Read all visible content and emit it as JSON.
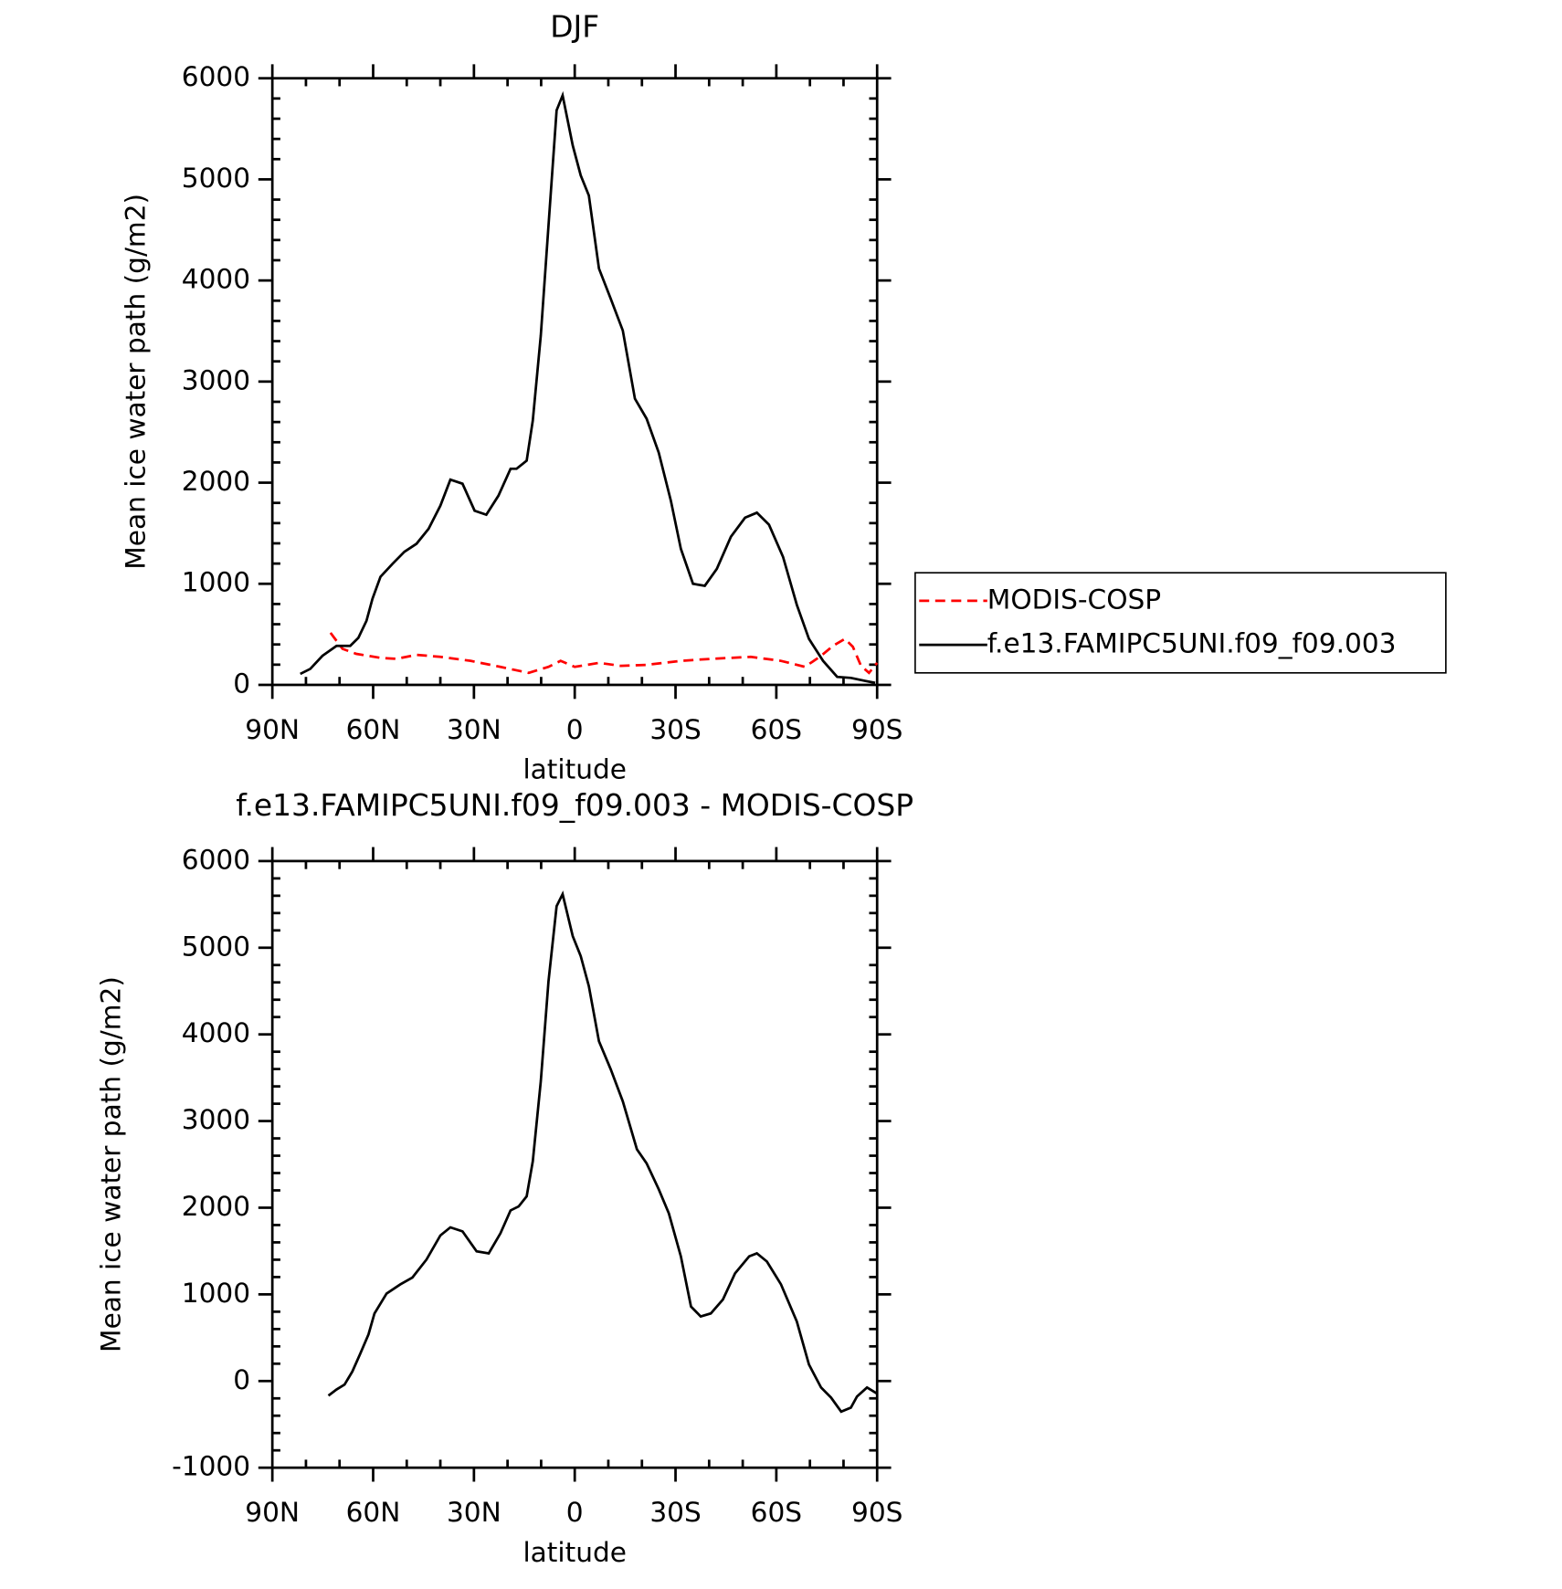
{
  "chart_data": [
    {
      "type": "line",
      "title": "DJF",
      "xlabel": "latitude",
      "ylabel": "Mean ice water path (g/m2)",
      "xlim": [
        90,
        -90
      ],
      "xticks": [
        {
          "value": 90,
          "label": "90N"
        },
        {
          "value": 60,
          "label": "60N"
        },
        {
          "value": 30,
          "label": "30N"
        },
        0,
        {
          "value": -30,
          "label": "30S"
        },
        {
          "value": -60,
          "label": "60S"
        },
        {
          "value": -90,
          "label": "90S"
        }
      ],
      "ylim": [
        0,
        6000
      ],
      "yticks": [
        0,
        1000,
        2000,
        3000,
        4000,
        5000,
        6000
      ],
      "legend": "right",
      "series": [
        {
          "name": "MODIS-COSP",
          "color": "#ff0000",
          "linestyle": "dashed",
          "x": [
            72.7,
            69.1,
            65.0,
            57.8,
            53.1,
            47.1,
            40.0,
            31.0,
            22.1,
            13.7,
            7.8,
            4.2,
            0.0,
            -7.2,
            -13.7,
            -21.4,
            -31.6,
            -40.5,
            -52.4,
            -61.4,
            -68.5,
            -73.3,
            -76.9,
            -80.4,
            -82.8,
            -85.2,
            -87.6,
            -90
          ],
          "values": [
            515,
            356,
            307,
            267,
            257,
            297,
            277,
            238,
            178,
            119,
            178,
            238,
            178,
            218,
            188,
            198,
            238,
            257,
            277,
            238,
            178,
            287,
            386,
            455,
            376,
            188,
            119,
            218
          ]
        },
        {
          "name": "f.e13.FAMIPC5UNI.f09_f09.003",
          "color": "#000000",
          "linestyle": "solid",
          "x": [
            81.7,
            78.7,
            75.1,
            70.9,
            66.8,
            64.4,
            62.0,
            60.2,
            57.8,
            54.2,
            50.7,
            47.1,
            43.5,
            40.0,
            37.0,
            33.4,
            29.8,
            26.3,
            22.7,
            19.1,
            17.3,
            14.3,
            12.5,
            10.1,
            7.8,
            5.4,
            3.6,
            0.6,
            -1.8,
            -4.2,
            -7.2,
            -10.7,
            -14.3,
            -17.9,
            -21.4,
            -25.0,
            -28.6,
            -31.6,
            -35.2,
            -38.7,
            -42.3,
            -46.5,
            -50.7,
            -54.2,
            -57.8,
            -62.0,
            -66.1,
            -69.7,
            -73.9,
            -78.1,
            -82.2,
            -86.4,
            -89.4
          ],
          "values": [
            109,
            158,
            287,
            386,
            386,
            465,
            634,
            851,
            1069,
            1198,
            1317,
            1396,
            1544,
            1772,
            2030,
            1990,
            1723,
            1683,
            1871,
            2138,
            2138,
            2218,
            2614,
            3455,
            4544,
            5683,
            5831,
            5336,
            5039,
            4841,
            4118,
            3821,
            3505,
            2831,
            2633,
            2297,
            1822,
            1346,
            1000,
            980,
            1148,
            1465,
            1653,
            1703,
            1584,
            1267,
            792,
            455,
            238,
            79,
            69,
            40,
            20
          ]
        }
      ]
    },
    {
      "type": "line",
      "title": "f.e13.FAMIPC5UNI.f09_f09.003 - MODIS-COSP",
      "xlabel": "latitude",
      "ylabel": "Mean ice water path (g/m2)",
      "xlim": [
        90,
        -90
      ],
      "xticks": [
        {
          "value": 90,
          "label": "90N"
        },
        {
          "value": 60,
          "label": "60N"
        },
        {
          "value": 30,
          "label": "30N"
        },
        0,
        {
          "value": -30,
          "label": "30S"
        },
        {
          "value": -60,
          "label": "60S"
        },
        {
          "value": -90,
          "label": "90S"
        }
      ],
      "ylim": [
        -1000,
        6000
      ],
      "yticks": [
        -1000,
        0,
        1000,
        2000,
        3000,
        4000,
        5000,
        6000
      ],
      "series": [
        {
          "color": "#000000",
          "linestyle": "solid",
          "x": [
            73.3,
            70.9,
            68.5,
            66.2,
            63.8,
            61.4,
            59.6,
            56.0,
            51.9,
            48.3,
            44.1,
            40.0,
            37.0,
            33.4,
            29.2,
            25.6,
            22.1,
            19.1,
            16.7,
            14.3,
            12.5,
            10.1,
            7.8,
            5.4,
            3.6,
            0.6,
            -1.8,
            -4.2,
            -7.2,
            -10.7,
            -14.3,
            -18.5,
            -21.4,
            -25.0,
            -28.0,
            -31.6,
            -34.6,
            -37.5,
            -40.5,
            -44.1,
            -47.7,
            -51.9,
            -54.2,
            -57.2,
            -61.4,
            -66.1,
            -69.7,
            -73.3,
            -76.3,
            -79.3,
            -82.2,
            -84.0,
            -87.0,
            -90
          ],
          "values": [
            -168,
            -98,
            -41,
            110,
            318,
            537,
            780,
            1010,
            1115,
            1195,
            1403,
            1680,
            1773,
            1727,
            1496,
            1473,
            1704,
            1969,
            2015,
            2131,
            2535,
            3459,
            4614,
            5480,
            5619,
            5134,
            4903,
            4556,
            3921,
            3598,
            3228,
            2674,
            2512,
            2212,
            1934,
            1438,
            860,
            745,
            780,
            941,
            1242,
            1438,
            1473,
            1380,
            1115,
            687,
            191,
            -75,
            -191,
            -353,
            -307,
            -179,
            -75,
            -145
          ]
        }
      ]
    }
  ]
}
